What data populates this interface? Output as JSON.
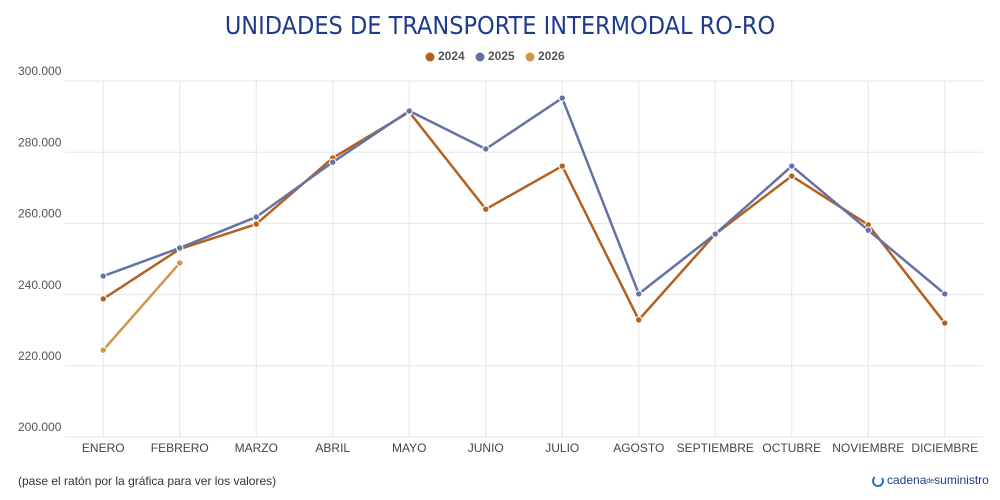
{
  "chart_data": {
    "type": "line",
    "title": "UNIDADES DE TRANSPORTE INTERMODAL RO-RO",
    "categories": [
      "ENERO",
      "FEBRERO",
      "MARZO",
      "ABRIL",
      "MAYO",
      "JUNIO",
      "JULIO",
      "AGOSTO",
      "SEPTIEMBRE",
      "OCTUBRE",
      "NOVIEMBRE",
      "DICIEMBRE"
    ],
    "series": [
      {
        "name": "2024",
        "color": "#b4601f",
        "values": [
          238800,
          252800,
          259800,
          278400,
          291300,
          264000,
          276100,
          232900,
          257000,
          273300,
          259600,
          232000
        ]
      },
      {
        "name": "2025",
        "color": "#6473a3",
        "values": [
          245200,
          253100,
          261800,
          277200,
          291600,
          280900,
          295200,
          240200,
          257000,
          276100,
          258100,
          240200
        ]
      },
      {
        "name": "2026",
        "color": "#cf9650",
        "values": [
          224400,
          248900,
          null,
          null,
          null,
          null,
          null,
          null,
          null,
          null,
          null,
          null
        ]
      }
    ],
    "ylim": [
      200000,
      300000
    ],
    "yticks": [
      {
        "value": 200000,
        "label": "200.000"
      },
      {
        "value": 220000,
        "label": "220.000"
      },
      {
        "value": 240000,
        "label": "240.000"
      },
      {
        "value": 260000,
        "label": "260.000"
      },
      {
        "value": 280000,
        "label": "280.000"
      },
      {
        "value": 300000,
        "label": "300.000"
      }
    ],
    "grid": true,
    "legend": "top"
  },
  "footer": {
    "note": "(pase el ratón por la gráfica para ver los valores)",
    "logo": [
      "cadena",
      "de",
      "suministro"
    ]
  }
}
